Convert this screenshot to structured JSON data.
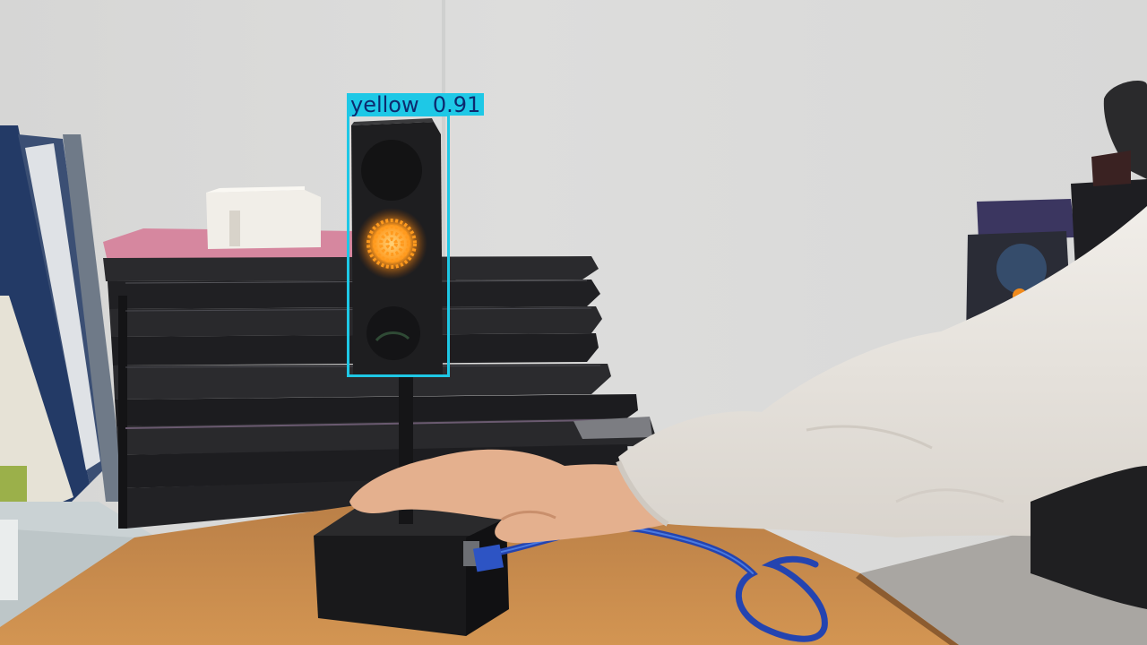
{
  "detection": {
    "class_label": "yellow",
    "confidence": "0.91",
    "box_color": "#1ec8e6"
  },
  "colors": {
    "wall": "#dcdcdb",
    "desk": "#c9894a",
    "sweater": "#ece8e3",
    "cable": "#2a56c8",
    "lamp_amber": "#ff9a1e",
    "device_black": "#1c1c1e"
  }
}
